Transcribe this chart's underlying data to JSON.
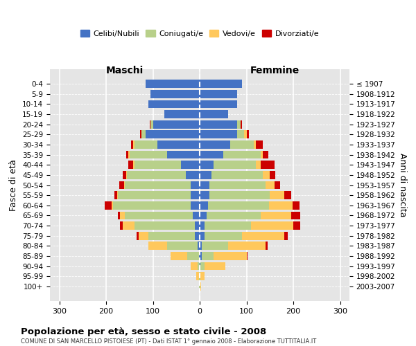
{
  "age_groups": [
    "0-4",
    "5-9",
    "10-14",
    "15-19",
    "20-24",
    "25-29",
    "30-34",
    "35-39",
    "40-44",
    "45-49",
    "50-54",
    "55-59",
    "60-64",
    "65-69",
    "70-74",
    "75-79",
    "80-84",
    "85-89",
    "90-94",
    "95-99",
    "100+"
  ],
  "birth_years": [
    "2003-2007",
    "1998-2002",
    "1993-1997",
    "1988-1992",
    "1983-1987",
    "1978-1982",
    "1973-1977",
    "1968-1972",
    "1963-1967",
    "1958-1962",
    "1953-1957",
    "1948-1952",
    "1943-1947",
    "1938-1942",
    "1933-1937",
    "1928-1932",
    "1923-1927",
    "1918-1922",
    "1913-1917",
    "1908-1912",
    "≤ 1907"
  ],
  "maschi": {
    "celibi": [
      115,
      105,
      110,
      75,
      100,
      115,
      90,
      70,
      40,
      30,
      20,
      20,
      20,
      15,
      10,
      10,
      5,
      2,
      0,
      0,
      0
    ],
    "coniugati": [
      0,
      0,
      0,
      0,
      5,
      10,
      50,
      80,
      100,
      125,
      140,
      155,
      165,
      145,
      130,
      100,
      65,
      25,
      5,
      2,
      1
    ],
    "vedovi": [
      0,
      0,
      0,
      0,
      0,
      0,
      2,
      2,
      2,
      2,
      2,
      2,
      3,
      10,
      25,
      20,
      40,
      35,
      15,
      5,
      0
    ],
    "divorziati": [
      0,
      0,
      0,
      0,
      2,
      2,
      5,
      5,
      10,
      8,
      10,
      5,
      15,
      5,
      5,
      5,
      0,
      0,
      0,
      0,
      0
    ]
  },
  "femmine": {
    "nubili": [
      90,
      80,
      80,
      60,
      80,
      80,
      65,
      50,
      30,
      25,
      20,
      20,
      18,
      15,
      10,
      10,
      5,
      5,
      2,
      0,
      0
    ],
    "coniugate": [
      0,
      0,
      0,
      0,
      8,
      15,
      50,
      80,
      90,
      110,
      120,
      130,
      130,
      115,
      100,
      80,
      55,
      25,
      8,
      2,
      1
    ],
    "vedove": [
      0,
      0,
      0,
      0,
      0,
      5,
      5,
      5,
      10,
      15,
      20,
      30,
      50,
      65,
      90,
      90,
      80,
      70,
      45,
      8,
      2
    ],
    "divorziate": [
      0,
      0,
      0,
      0,
      2,
      5,
      15,
      12,
      30,
      12,
      12,
      15,
      15,
      20,
      15,
      8,
      5,
      2,
      0,
      0,
      0
    ]
  },
  "colors": {
    "celibi": "#4472c4",
    "coniugati": "#b8d08a",
    "vedovi": "#ffc85c",
    "divorziati": "#cc0000"
  },
  "bg_color": "#e5e5e5",
  "grid_color": "white",
  "xlim": 320,
  "title": "Popolazione per età, sesso e stato civile - 2008",
  "subtitle": "COMUNE DI SAN MARCELLO PISTOIESE (PT) - Dati ISTAT 1° gennaio 2008 - Elaborazione TUTTITALIA.IT",
  "ylabel_left": "Fasce di età",
  "ylabel_right": "Anni di nascita",
  "legend_labels": [
    "Celibi/Nubili",
    "Coniugati/e",
    "Vedovi/e",
    "Divorziati/e"
  ],
  "maschi_label": "Maschi",
  "femmine_label": "Femmine"
}
